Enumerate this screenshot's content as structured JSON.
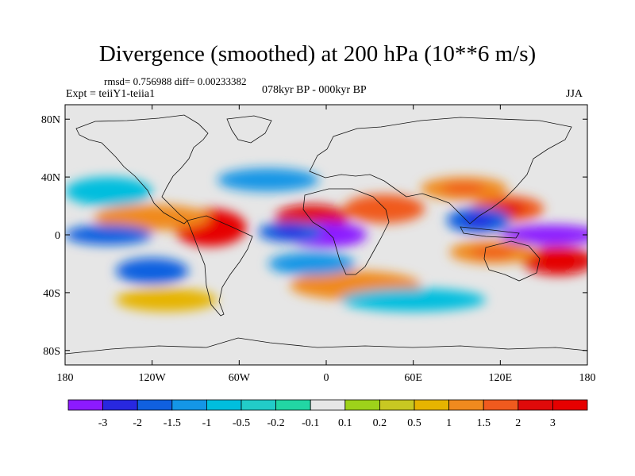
{
  "header": {
    "title": "Divergence (smoothed) at 200 hPa (10**6 m/s)",
    "stats": "rmsd= 0.756988 diff= 0.00233382",
    "experiment": "Expt = teiiY1-teiia1",
    "period": "078kyr BP - 000kyr BP",
    "season": "JJA"
  },
  "chart_data": {
    "type": "heatmap",
    "title": "Divergence (smoothed) at 200 hPa (10**6 m/s)",
    "projection": "cylindrical equidistant",
    "xlim": [
      -180,
      180
    ],
    "ylim": [
      -90,
      90
    ],
    "x_ticks": [
      {
        "value": -180,
        "label": "180"
      },
      {
        "value": -120,
        "label": "120W"
      },
      {
        "value": -60,
        "label": "60W"
      },
      {
        "value": 0,
        "label": "0"
      },
      {
        "value": 60,
        "label": "60E"
      },
      {
        "value": 120,
        "label": "120E"
      },
      {
        "value": 180,
        "label": "180"
      }
    ],
    "y_ticks": [
      {
        "value": 80,
        "label": "80N"
      },
      {
        "value": 40,
        "label": "40N"
      },
      {
        "value": 0,
        "label": "0"
      },
      {
        "value": -40,
        "label": "40S"
      },
      {
        "value": -80,
        "label": "80S"
      }
    ],
    "colorbar": {
      "levels": [
        "-3",
        "-2",
        "-1.5",
        "-1",
        "-0.5",
        "-0.2",
        "-0.1",
        "0.1",
        "0.2",
        "0.5",
        "1",
        "1.5",
        "2",
        "3"
      ],
      "colors": [
        "#8c1aff",
        "#2828e0",
        "#1060e0",
        "#1496e6",
        "#00bede",
        "#22ccc8",
        "#22d6a4",
        "#e6e6e6",
        "#9ed21a",
        "#c8c822",
        "#e6b400",
        "#f08a1e",
        "#f05a1e",
        "#e00a0a",
        "#e60000"
      ]
    },
    "fields": [
      {
        "lon": -80,
        "lat": 5,
        "value": 3.2,
        "rx": 25,
        "ry": 13
      },
      {
        "lon": -120,
        "lat": 12,
        "value": 1.2,
        "rx": 40,
        "ry": 9
      },
      {
        "lon": -10,
        "lat": 12,
        "value": 2.2,
        "rx": 25,
        "ry": 9
      },
      {
        "lon": 40,
        "lat": 18,
        "value": 1.6,
        "rx": 28,
        "ry": 10
      },
      {
        "lon": 95,
        "lat": 32,
        "value": 1.5,
        "rx": 30,
        "ry": 8
      },
      {
        "lon": 125,
        "lat": 18,
        "value": 2.0,
        "rx": 25,
        "ry": 9
      },
      {
        "lon": 160,
        "lat": -18,
        "value": 3.0,
        "rx": 25,
        "ry": 10
      },
      {
        "lon": 115,
        "lat": -12,
        "value": 1.5,
        "rx": 30,
        "ry": 8
      },
      {
        "lon": 20,
        "lat": -35,
        "value": 1.2,
        "rx": 45,
        "ry": 10
      },
      {
        "lon": -110,
        "lat": -45,
        "value": 0.8,
        "rx": 35,
        "ry": 8
      },
      {
        "lon": 0,
        "lat": 0,
        "value": -3.2,
        "rx": 28,
        "ry": 9
      },
      {
        "lon": -25,
        "lat": 2,
        "value": -1.8,
        "rx": 22,
        "ry": 7
      },
      {
        "lon": 155,
        "lat": 0,
        "value": -3.2,
        "rx": 35,
        "ry": 7
      },
      {
        "lon": 105,
        "lat": 10,
        "value": -1.8,
        "rx": 22,
        "ry": 9
      },
      {
        "lon": -150,
        "lat": 0,
        "value": -1.5,
        "rx": 30,
        "ry": 7
      },
      {
        "lon": -120,
        "lat": -25,
        "value": -1.5,
        "rx": 25,
        "ry": 9
      },
      {
        "lon": -40,
        "lat": 38,
        "value": -1.0,
        "rx": 35,
        "ry": 8
      },
      {
        "lon": -10,
        "lat": -20,
        "value": -1.0,
        "rx": 30,
        "ry": 8
      },
      {
        "lon": 60,
        "lat": -45,
        "value": -0.5,
        "rx": 50,
        "ry": 8
      },
      {
        "lon": -150,
        "lat": 30,
        "value": -0.5,
        "rx": 30,
        "ry": 10
      }
    ]
  }
}
